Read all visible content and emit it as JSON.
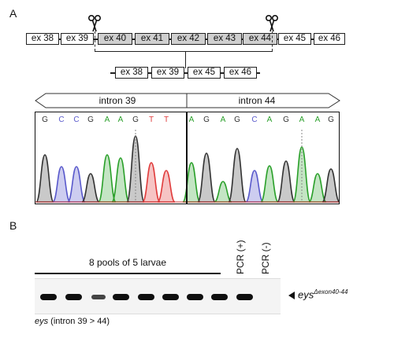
{
  "panels": {
    "a": "A",
    "b": "B"
  },
  "gene_model": {
    "top_exons": [
      {
        "label": "ex 38",
        "deleted": false
      },
      {
        "label": "ex 39",
        "deleted": false
      },
      {
        "label": "ex 40",
        "deleted": true
      },
      {
        "label": "ex 41",
        "deleted": true
      },
      {
        "label": "ex 42",
        "deleted": true
      },
      {
        "label": "ex 43",
        "deleted": true
      },
      {
        "label": "ex 44",
        "deleted": true
      },
      {
        "label": "ex 45",
        "deleted": false
      },
      {
        "label": "ex 46",
        "deleted": false
      }
    ],
    "bottom_exons": [
      "ex 38",
      "ex 39",
      "ex 45",
      "ex 46"
    ]
  },
  "chromatogram": {
    "left_region": "intron 39",
    "right_region": "intron 44",
    "bases": [
      {
        "b": "G",
        "color": "#333333"
      },
      {
        "b": "C",
        "color": "#5a5acc"
      },
      {
        "b": "C",
        "color": "#5a5acc"
      },
      {
        "b": "G",
        "color": "#333333"
      },
      {
        "b": "A",
        "color": "#2aa02a"
      },
      {
        "b": "A",
        "color": "#2aa02a"
      },
      {
        "b": "G",
        "color": "#333333"
      },
      {
        "b": "T",
        "color": "#e03c3c"
      },
      {
        "b": "T",
        "color": "#e03c3c"
      },
      {
        "b": "A",
        "color": "#2aa02a"
      },
      {
        "b": "G",
        "color": "#333333"
      },
      {
        "b": "A",
        "color": "#2aa02a"
      },
      {
        "b": "G",
        "color": "#333333"
      },
      {
        "b": "C",
        "color": "#5a5acc"
      },
      {
        "b": "A",
        "color": "#2aa02a"
      },
      {
        "b": "G",
        "color": "#333333"
      },
      {
        "b": "A",
        "color": "#2aa02a"
      },
      {
        "b": "A",
        "color": "#2aa02a"
      },
      {
        "b": "G",
        "color": "#333333"
      }
    ]
  },
  "gel": {
    "pools_label": "8 pools of 5 larvae",
    "pcr_pos": "PCR (+)",
    "pcr_neg": "PCR (-)",
    "product_label": "eys",
    "product_sup": "Δexon40-44",
    "caption_gene": "eys",
    "caption_rest": " (intron 39 > 44)"
  }
}
